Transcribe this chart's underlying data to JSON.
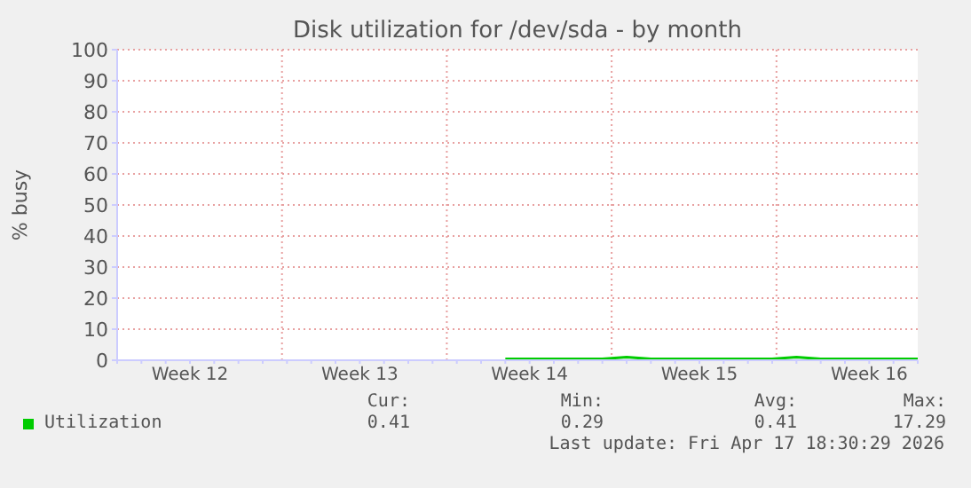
{
  "chart_data": {
    "type": "line",
    "title": "Disk utilization for /dev/sda - by month",
    "ylabel": "% busy",
    "categories": [
      null,
      null,
      null,
      "Week 12",
      null,
      null,
      null,
      null,
      null,
      null,
      "Week 13",
      null,
      null,
      null,
      null,
      null,
      null,
      "Week 14",
      null,
      null,
      null,
      null,
      null,
      null,
      "Week 15",
      null,
      null,
      null,
      null,
      null,
      null,
      "Week 16",
      null,
      null
    ],
    "series": [
      {
        "name": "Utilization",
        "color": "#00cc00",
        "values": [
          null,
          null,
          null,
          null,
          null,
          null,
          null,
          null,
          null,
          null,
          null,
          null,
          null,
          null,
          null,
          null,
          0.4,
          0.4,
          0.4,
          0.4,
          0.4,
          1,
          0.4,
          0.4,
          0.4,
          0.4,
          0.4,
          0.4,
          1,
          0.4,
          0.4,
          0.4,
          0.4,
          0.4
        ]
      }
    ],
    "ylim": [
      0,
      100
    ],
    "yticks": [
      0,
      10,
      20,
      30,
      40,
      50,
      60,
      70,
      80,
      90,
      100
    ],
    "grid": true,
    "legend": "bottom",
    "marker": "none",
    "line_style": "solid",
    "annotations": [
      "Cur:",
      "Min:",
      "Avg:",
      "Max:",
      "0.41",
      "0.29",
      "0.41",
      "17.29",
      "Last update: Fri Apr 17 18:30:29 2026"
    ]
  }
}
